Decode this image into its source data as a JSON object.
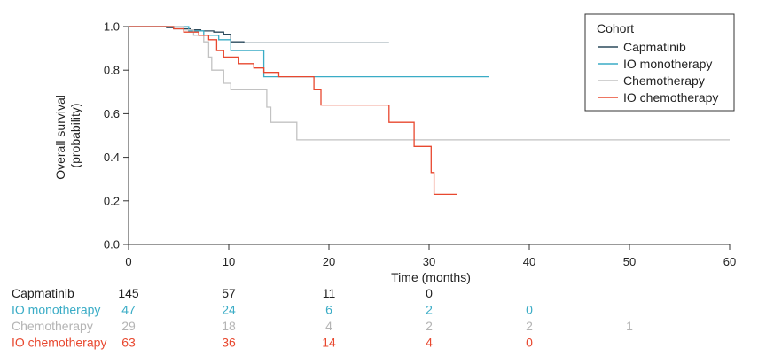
{
  "chart_data": {
    "type": "line",
    "subtype": "kaplan-meier step",
    "xlabel": "Time (months)",
    "ylabel_lines": [
      "Overall survival",
      "(probability)"
    ],
    "xlim": [
      0,
      60
    ],
    "ylim": [
      0,
      1
    ],
    "xticks": [
      0,
      10,
      20,
      30,
      40,
      50,
      60
    ],
    "yticks": [
      0.0,
      0.2,
      0.4,
      0.6,
      0.8,
      1.0
    ],
    "ytick_labels": [
      "0.0",
      "0.2",
      "0.4",
      "0.6",
      "0.8",
      "1.0"
    ],
    "grid": false,
    "legend": {
      "title": "Cohort",
      "position": "top-right"
    },
    "series": [
      {
        "name": "Capmatinib",
        "color": "#2b4a5c",
        "steps": [
          [
            0,
            1.0
          ],
          [
            3.8,
            0.995
          ],
          [
            4.5,
            0.99
          ],
          [
            6.2,
            0.985
          ],
          [
            7.2,
            0.98
          ],
          [
            8.5,
            0.975
          ],
          [
            9.5,
            0.965
          ],
          [
            10.2,
            0.93
          ],
          [
            11.5,
            0.925
          ],
          [
            26,
            0.925
          ]
        ]
      },
      {
        "name": "IO monotherapy",
        "color": "#3aacc6",
        "steps": [
          [
            0,
            1.0
          ],
          [
            6,
            0.98
          ],
          [
            7.5,
            0.96
          ],
          [
            9,
            0.94
          ],
          [
            10.2,
            0.89
          ],
          [
            13.5,
            0.77
          ],
          [
            36,
            0.77
          ]
        ]
      },
      {
        "name": "Chemotherapy",
        "color": "#c2c2c2",
        "steps": [
          [
            0,
            1.0
          ],
          [
            5.5,
            0.985
          ],
          [
            6.5,
            0.96
          ],
          [
            7.5,
            0.93
          ],
          [
            8,
            0.86
          ],
          [
            8.3,
            0.8
          ],
          [
            9.5,
            0.74
          ],
          [
            10.2,
            0.71
          ],
          [
            13.8,
            0.63
          ],
          [
            14.2,
            0.56
          ],
          [
            16.8,
            0.48
          ],
          [
            60,
            0.48
          ]
        ]
      },
      {
        "name": "IO chemotherapy",
        "color": "#e8482f",
        "steps": [
          [
            0,
            1.0
          ],
          [
            4.5,
            0.99
          ],
          [
            5.5,
            0.975
          ],
          [
            7,
            0.96
          ],
          [
            8,
            0.94
          ],
          [
            8.8,
            0.89
          ],
          [
            9.5,
            0.86
          ],
          [
            11,
            0.83
          ],
          [
            12.5,
            0.81
          ],
          [
            13.5,
            0.79
          ],
          [
            15,
            0.77
          ],
          [
            18.5,
            0.71
          ],
          [
            19.2,
            0.64
          ],
          [
            26,
            0.56
          ],
          [
            28.5,
            0.45
          ],
          [
            30.2,
            0.33
          ],
          [
            30.5,
            0.23
          ],
          [
            32.8,
            0.23
          ]
        ]
      }
    ]
  },
  "risk_table": {
    "times": [
      0,
      10,
      20,
      30,
      40,
      50
    ],
    "rows": [
      {
        "label": "Capmatinib",
        "color": "#222222",
        "counts": [
          "145",
          "57",
          "11",
          "0",
          "",
          ""
        ]
      },
      {
        "label": "IO monotherapy",
        "color": "#3aacc6",
        "counts": [
          "47",
          "24",
          "6",
          "2",
          "0",
          ""
        ]
      },
      {
        "label": "Chemotherapy",
        "color": "#b4b4b4",
        "counts": [
          "29",
          "18",
          "4",
          "2",
          "2",
          "1"
        ]
      },
      {
        "label": "IO chemotherapy",
        "color": "#e8482f",
        "counts": [
          "63",
          "36",
          "14",
          "4",
          "0",
          ""
        ]
      }
    ]
  }
}
